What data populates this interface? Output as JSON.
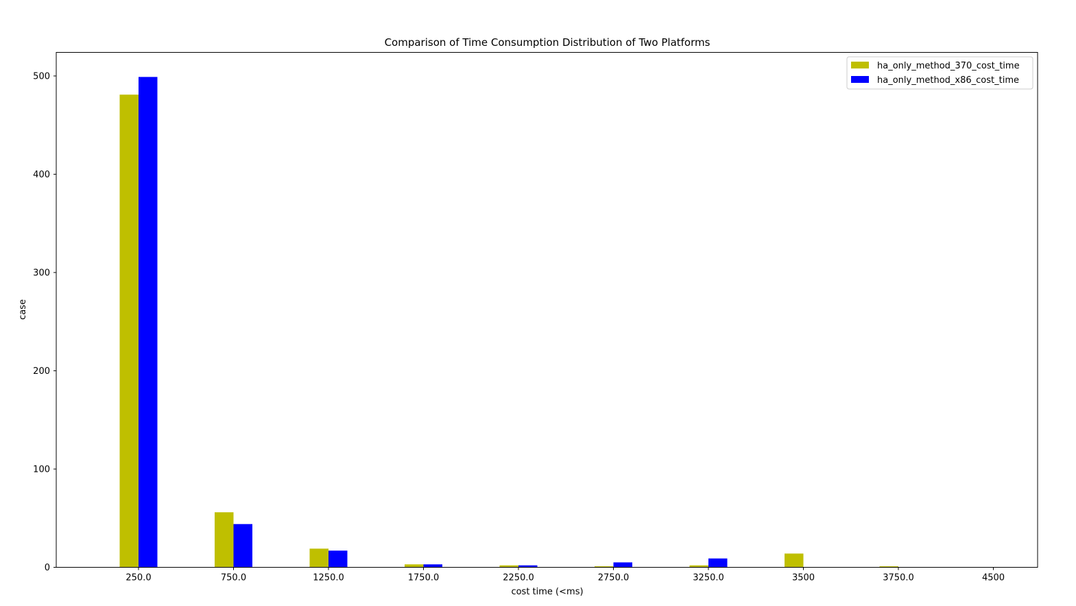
{
  "chart_data": {
    "type": "bar",
    "title": "Comparison of Time Consumption Distribution of Two Platforms",
    "xlabel": "cost time (<ms)",
    "ylabel": "case",
    "categories": [
      "250.0",
      "750.0",
      "1250.0",
      "1750.0",
      "2250.0",
      "2750.0",
      "3250.0",
      "3500",
      "3750.0",
      "4500"
    ],
    "series": [
      {
        "name": "ha_only_method_370_cost_time",
        "color": "#bfbf00",
        "values": [
          481,
          56,
          19,
          3,
          2,
          1,
          2,
          14,
          1,
          0
        ]
      },
      {
        "name": "ha_only_method_x86_cost_time",
        "color": "#0000ff",
        "values": [
          499,
          44,
          17,
          3,
          2,
          5,
          9,
          0,
          0,
          0
        ]
      }
    ],
    "ylim": [
      0,
      524
    ],
    "yticks": [
      0,
      100,
      200,
      300,
      400,
      500
    ],
    "grid": false,
    "legend_position": "top-right"
  }
}
